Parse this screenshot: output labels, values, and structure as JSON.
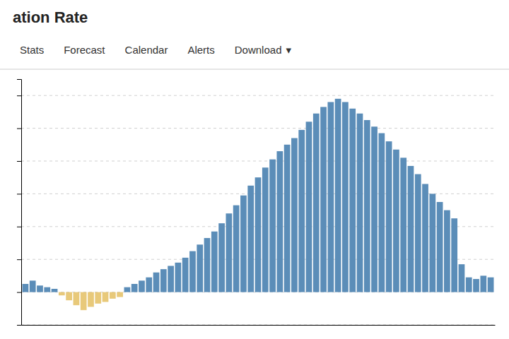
{
  "chart_data": {
    "type": "bar",
    "title": "ation Rate",
    "annotations": [
      "Stats",
      "Forecast",
      "Calendar",
      "Alerts",
      "Download",
      "▾"
    ],
    "categories": [
      null,
      null,
      null,
      null,
      null,
      null,
      null,
      null,
      null,
      null,
      null,
      null,
      null,
      null,
      null,
      null,
      null,
      null,
      null,
      null,
      null,
      null,
      null,
      null,
      null,
      null,
      null,
      null,
      null,
      null,
      null,
      null,
      null,
      null,
      null,
      null,
      null,
      null,
      null,
      null,
      null,
      null,
      null,
      null,
      null,
      null,
      null,
      null,
      null,
      null,
      null,
      null,
      null,
      null,
      null,
      null,
      null,
      null,
      null,
      null,
      null,
      null,
      null,
      null,
      null
    ],
    "values": [
      0.5,
      0.7,
      0.4,
      0.3,
      0.2,
      -0.2,
      -0.5,
      -0.8,
      -1.1,
      -0.9,
      -0.7,
      -0.6,
      -0.4,
      -0.3,
      0.3,
      0.5,
      0.7,
      0.9,
      1.2,
      1.4,
      1.6,
      1.8,
      2.1,
      2.5,
      2.9,
      3.3,
      3.7,
      4.2,
      4.8,
      5.3,
      5.9,
      6.5,
      7.0,
      7.6,
      8.1,
      8.6,
      9.0,
      9.4,
      9.9,
      10.4,
      10.9,
      11.3,
      11.6,
      11.8,
      11.6,
      11.2,
      10.9,
      10.5,
      10.1,
      9.7,
      9.2,
      8.7,
      8.2,
      7.7,
      7.2,
      6.6,
      6.0,
      5.5,
      5.0,
      4.5,
      1.7,
      0.9,
      0.8,
      1.0,
      0.9
    ],
    "colors": [
      "#5b8db8",
      "#5b8db8",
      "#5b8db8",
      "#5b8db8",
      "#5b8db8",
      "#e8c97a",
      "#e8c97a",
      "#e8c97a",
      "#e8c97a",
      "#e8c97a",
      "#e8c97a",
      "#e8c97a",
      "#e8c97a",
      "#e8c97a",
      "#5b8db8",
      "#5b8db8",
      "#5b8db8",
      "#5b8db8",
      "#5b8db8",
      "#5b8db8",
      "#5b8db8",
      "#5b8db8",
      "#5b8db8",
      "#5b8db8",
      "#5b8db8",
      "#5b8db8",
      "#5b8db8",
      "#5b8db8",
      "#5b8db8",
      "#5b8db8",
      "#5b8db8",
      "#5b8db8",
      "#5b8db8",
      "#5b8db8",
      "#5b8db8",
      "#5b8db8",
      "#5b8db8",
      "#5b8db8",
      "#5b8db8",
      "#5b8db8",
      "#5b8db8",
      "#5b8db8",
      "#5b8db8",
      "#5b8db8",
      "#5b8db8",
      "#5b8db8",
      "#5b8db8",
      "#5b8db8",
      "#5b8db8",
      "#5b8db8",
      "#5b8db8",
      "#5b8db8",
      "#5b8db8",
      "#5b8db8",
      "#5b8db8",
      "#5b8db8",
      "#5b8db8",
      "#5b8db8",
      "#5b8db8",
      "#5b8db8",
      "#5b8db8",
      "#5b8db8",
      "#5b8db8",
      "#5b8db8",
      "#5b8db8"
    ],
    "ylim": [
      -2.0,
      13.0
    ],
    "yticks": [
      -2,
      0,
      2,
      4,
      6,
      8,
      10,
      12
    ],
    "grid": true,
    "tick_labels": false
  }
}
